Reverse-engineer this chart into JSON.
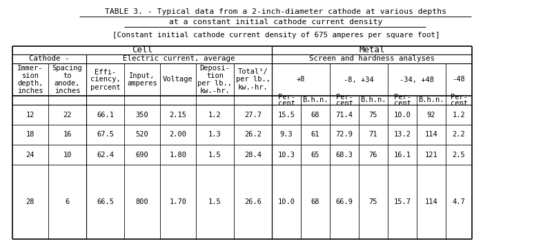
{
  "title_line1": "TABLE 3. - Typical data from a 2-inch-diameter cathode at various depths",
  "title_line2": "at a constant initial cathode current density",
  "subtitle": "[Constant initial cathode current density of 675 amperes per square foot]",
  "data_rows": [
    [
      "12",
      "22",
      "66.1",
      "350",
      "2.15",
      "1.2",
      "27.7",
      "15.5",
      "68",
      "71.4",
      "75",
      "10.0",
      "92",
      "1.2"
    ],
    [
      "18",
      "16",
      "67.5",
      "520",
      "2.00",
      "1.3",
      "26.2",
      "9.3",
      "61",
      "72.9",
      "71",
      "13.2",
      "114",
      "2.2"
    ],
    [
      "24",
      "10",
      "62.4",
      "690",
      "1.80",
      "1.5",
      "28.4",
      "10.3",
      "65",
      "68.3",
      "76",
      "16.1",
      "121",
      "2.5"
    ],
    [
      "28",
      "6",
      "66.5",
      "800",
      "1.70",
      "1.5",
      "26.6",
      "10.0",
      "68",
      "66.9",
      "75",
      "15.7",
      "114",
      "4.7"
    ]
  ],
  "bg_color": "#ffffff",
  "text_color": "#000000"
}
